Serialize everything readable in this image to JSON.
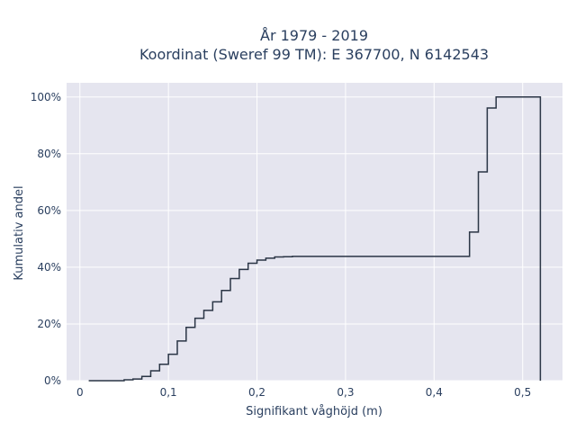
{
  "chart_data": {
    "type": "line",
    "line_shape": "step",
    "title_lines": [
      "År 1979 - 2019",
      "Koordinat (Sweref 99 TM): E 367700, N 6142543"
    ],
    "xlabel": "Signifikant våghöjd (m)",
    "ylabel": "Kumulativ andel",
    "xlim": [
      -0.015,
      0.545
    ],
    "ylim": [
      0,
      1.05
    ],
    "x_ticks": [
      0,
      0.1,
      0.2,
      0.3,
      0.4,
      0.5
    ],
    "x_tick_labels": [
      "0",
      "0,1",
      "0,2",
      "0,3",
      "0,4",
      "0,5"
    ],
    "y_ticks": [
      0,
      0.2,
      0.4,
      0.6,
      0.8,
      1.0
    ],
    "y_tick_labels": [
      "0%",
      "20%",
      "40%",
      "60%",
      "80%",
      "100%"
    ],
    "grid": true,
    "colors": {
      "line": "#2a3545",
      "plot_bg": "#e5e5ef",
      "grid": "#ffffff",
      "text": "#2a3f5f"
    },
    "series": [
      {
        "x": [
          0.01,
          0.05,
          0.06,
          0.07,
          0.08,
          0.09,
          0.1,
          0.11,
          0.12,
          0.13,
          0.14,
          0.15,
          0.16,
          0.17,
          0.18,
          0.19,
          0.2,
          0.21,
          0.22,
          0.23,
          0.24,
          0.44,
          0.45,
          0.46,
          0.47,
          0.52,
          0.52
        ],
        "y": [
          0,
          0.003,
          0.006,
          0.015,
          0.035,
          0.058,
          0.093,
          0.14,
          0.188,
          0.22,
          0.248,
          0.278,
          0.318,
          0.36,
          0.392,
          0.414,
          0.425,
          0.432,
          0.436,
          0.437,
          0.438,
          0.524,
          0.736,
          0.961,
          1.0,
          1.0,
          0
        ]
      }
    ]
  }
}
